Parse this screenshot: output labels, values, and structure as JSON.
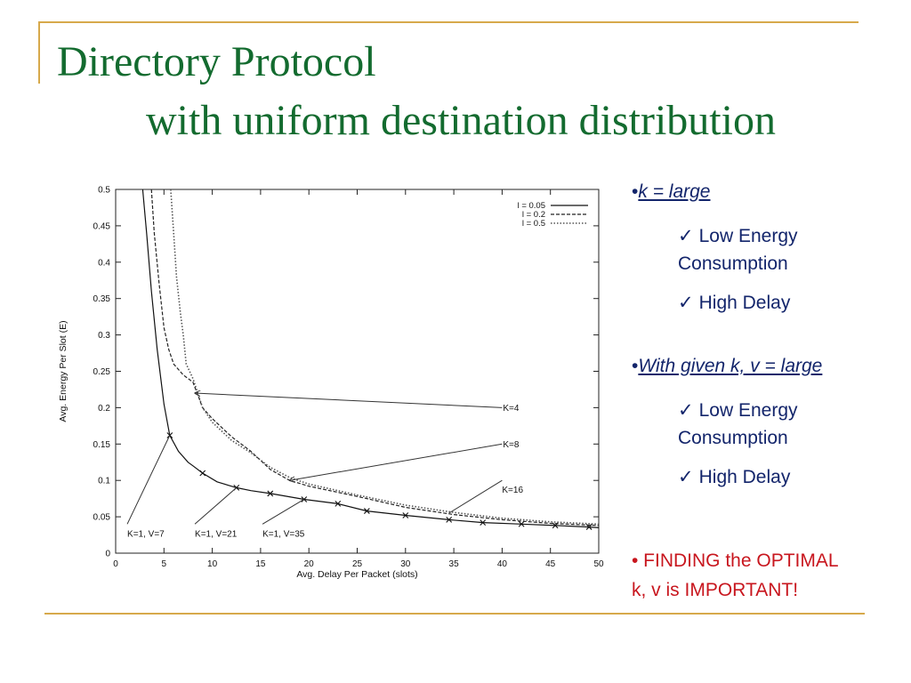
{
  "slide": {
    "title_line1": "Directory Protocol",
    "title_line2": "with uniform destination distribution",
    "accent_color": "#d7a94b",
    "title_color": "#136b2f"
  },
  "notes": {
    "bullet1": {
      "marker": "•",
      "text": "k = large"
    },
    "bullet1_items": [
      {
        "check_icon": "✓",
        "line1": "Low Energy",
        "line2": "Consumption"
      },
      {
        "check_icon": "✓",
        "line1": "High Delay"
      }
    ],
    "bullet2": {
      "marker": "•",
      "text": "With given k, v = large"
    },
    "bullet2_items": [
      {
        "check_icon": "✓",
        "line1": "Low Energy",
        "line2": "Consumption"
      },
      {
        "check_icon": "✓",
        "line1": "High Delay"
      }
    ],
    "finding": {
      "line1": "• FINDING the OPTIMAL",
      "line2": "k, v is IMPORTANT!"
    },
    "text_color": "#13256b",
    "finding_color": "#c8161e"
  },
  "chart_data": {
    "type": "line",
    "xlabel": "Avg. Delay Per Packet (slots)",
    "ylabel": "Avg. Energy Per Slot (E)",
    "xlim": [
      0,
      50
    ],
    "ylim": [
      0,
      0.5
    ],
    "xticks": [
      "0",
      "5",
      "10",
      "15",
      "20",
      "25",
      "30",
      "35",
      "40",
      "45",
      "50"
    ],
    "yticks": [
      "0",
      "0.05",
      "0.1",
      "0.15",
      "0.2",
      "0.25",
      "0.3",
      "0.35",
      "0.4",
      "0.45",
      "0.5"
    ],
    "legend_position": "top-right",
    "grid": false,
    "series": [
      {
        "name": "l = 0.05",
        "style": "solid",
        "markers": "x",
        "x": [
          2.8,
          3.2,
          3.7,
          4.3,
          5.0,
          5.6,
          6.5,
          7.5,
          8.0,
          9.0,
          10.5,
          12.5,
          14.0,
          16.0,
          19.5,
          23.0,
          26.0,
          30.0,
          34.5,
          38.0,
          42.0,
          45.5,
          49.0,
          50.0
        ],
        "y": [
          0.5,
          0.44,
          0.36,
          0.28,
          0.205,
          0.162,
          0.14,
          0.125,
          0.12,
          0.11,
          0.098,
          0.09,
          0.086,
          0.082,
          0.074,
          0.068,
          0.058,
          0.052,
          0.046,
          0.042,
          0.04,
          0.038,
          0.036,
          0.035
        ]
      },
      {
        "name": "l = 0.2",
        "style": "dashed",
        "x": [
          3.7,
          4.0,
          4.5,
          5.0,
          5.5,
          6.0,
          7.0,
          8.0,
          9.0,
          10.0,
          12.0,
          14.0,
          16.0,
          18.0,
          20.0,
          25.0,
          30.0,
          35.0,
          40.0,
          45.0,
          50.0
        ],
        "y": [
          0.5,
          0.44,
          0.37,
          0.31,
          0.28,
          0.26,
          0.245,
          0.235,
          0.2,
          0.185,
          0.16,
          0.14,
          0.115,
          0.1,
          0.092,
          0.078,
          0.063,
          0.053,
          0.046,
          0.041,
          0.038
        ]
      },
      {
        "name": "l = 0.5",
        "style": "dotted",
        "x": [
          5.7,
          6.0,
          6.3,
          6.7,
          7.0,
          7.3,
          8.0,
          8.5,
          9.0,
          10.0,
          12.0,
          14.0,
          16.0,
          18.0,
          20.0,
          25.0,
          30.0,
          35.0,
          40.0,
          45.0,
          50.0
        ],
        "y": [
          0.5,
          0.44,
          0.38,
          0.33,
          0.3,
          0.26,
          0.24,
          0.22,
          0.2,
          0.18,
          0.155,
          0.138,
          0.118,
          0.104,
          0.095,
          0.08,
          0.066,
          0.056,
          0.048,
          0.043,
          0.04
        ]
      }
    ],
    "annotations": [
      {
        "text": "K=4",
        "label_at": [
          40,
          0.2
        ],
        "arrow_to": [
          8.2,
          0.22
        ]
      },
      {
        "text": "K=8",
        "label_at": [
          40,
          0.15
        ],
        "arrow_to": [
          18.0,
          0.1
        ]
      },
      {
        "text": "K=16",
        "label_at": [
          40,
          0.1
        ],
        "arrow_to": [
          34.5,
          0.055
        ]
      },
      {
        "text": "K=1, V=7",
        "label_at": [
          1.2,
          0.04
        ],
        "arrow_to": [
          5.6,
          0.162
        ]
      },
      {
        "text": "K=1, V=21",
        "label_at": [
          8.2,
          0.04
        ],
        "arrow_to": [
          12.5,
          0.09
        ]
      },
      {
        "text": "K=1, V=35",
        "label_at": [
          15.2,
          0.04
        ],
        "arrow_to": [
          19.5,
          0.074
        ]
      }
    ]
  }
}
